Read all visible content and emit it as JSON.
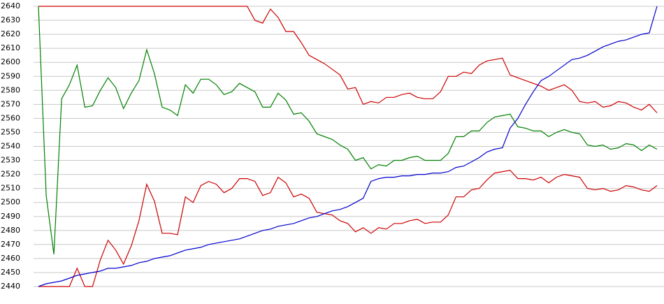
{
  "chart_data": {
    "type": "line",
    "categories": [
      null,
      null,
      null,
      null,
      null,
      null,
      null,
      null,
      null,
      null,
      null,
      null,
      null,
      null,
      null,
      null,
      null,
      null,
      null,
      null,
      null,
      null,
      null,
      null,
      null,
      null,
      null,
      null,
      null,
      null,
      null,
      null,
      null,
      null,
      null,
      null,
      null,
      null,
      null,
      null,
      null,
      null,
      null,
      null,
      null,
      null,
      null,
      null,
      null,
      null,
      null,
      null,
      null,
      null,
      null,
      null,
      null,
      null,
      null,
      null,
      null,
      null,
      null,
      null,
      null,
      null,
      null,
      null,
      null,
      null,
      null,
      null,
      null,
      null,
      null,
      null,
      null,
      null,
      null,
      null,
      null
    ],
    "series": [
      {
        "color": "#cc0000",
        "values": [
          2640,
          2640,
          2640,
          2640,
          2640,
          2640,
          2640,
          2640,
          2640,
          2640,
          2640,
          2640,
          2640,
          2640,
          2640,
          2640,
          2640,
          2640,
          2640,
          2640,
          2640,
          2640,
          2640,
          2640,
          2640,
          2640,
          2640,
          2640,
          2630,
          2628,
          2638,
          2632,
          2622,
          2622,
          2614,
          2605,
          2602,
          2599,
          2595,
          2591,
          2581,
          2582,
          2570,
          2572,
          2571,
          2575,
          2575,
          2577,
          2578,
          2575,
          2574,
          2574,
          2579,
          2590,
          2590,
          2593,
          2592,
          2598,
          2601,
          2602,
          2603,
          2591,
          2589,
          2587,
          2585,
          2583,
          2580,
          2582,
          2584,
          2580,
          2572,
          2571,
          2572,
          2568,
          2569,
          2572,
          2571,
          2568,
          2566,
          2570,
          2564
        ]
      },
      {
        "color": "#008000",
        "values": [
          2640,
          2505,
          2463,
          2574,
          2584,
          2598,
          2568,
          2569,
          2580,
          2589,
          2582,
          2567,
          2578,
          2587,
          2609,
          2592,
          2568,
          2566,
          2562,
          2584,
          2578,
          2588,
          2588,
          2584,
          2577,
          2579,
          2585,
          2582,
          2579,
          2568,
          2568,
          2578,
          2573,
          2563,
          2564,
          2558,
          2549,
          2547,
          2545,
          2541,
          2538,
          2530,
          2532,
          2524,
          2527,
          2526,
          2530,
          2530,
          2532,
          2533,
          2530,
          2530,
          2530,
          2535,
          2547,
          2547,
          2551,
          2551,
          2557,
          2561,
          2562,
          2563,
          2554,
          2553,
          2551,
          2551,
          2547,
          2550,
          2552,
          2550,
          2549,
          2541,
          2540,
          2541,
          2538,
          2539,
          2542,
          2541,
          2537,
          2541,
          2538
        ]
      },
      {
        "color": "#cc0000",
        "values": [
          2440,
          2440,
          2440,
          2440,
          2440,
          2453,
          2440,
          2440,
          2459,
          2473,
          2466,
          2456,
          2469,
          2487,
          2513,
          2501,
          2478,
          2478,
          2477,
          2504,
          2500,
          2512,
          2515,
          2513,
          2507,
          2510,
          2517,
          2517,
          2515,
          2505,
          2507,
          2518,
          2514,
          2504,
          2506,
          2503,
          2493,
          2492,
          2491,
          2487,
          2485,
          2479,
          2482,
          2478,
          2482,
          2481,
          2485,
          2485,
          2487,
          2488,
          2485,
          2486,
          2486,
          2491,
          2504,
          2504,
          2509,
          2510,
          2516,
          2521,
          2522,
          2523,
          2517,
          2517,
          2516,
          2518,
          2514,
          2518,
          2520,
          2519,
          2518,
          2510,
          2509,
          2510,
          2508,
          2509,
          2512,
          2511,
          2509,
          2508,
          2512
        ]
      },
      {
        "color": "#0000cc",
        "values": [
          2440,
          2442,
          2443,
          2444,
          2446,
          2448,
          2449,
          2450,
          2451,
          2453,
          2453,
          2454,
          2455,
          2457,
          2458,
          2460,
          2461,
          2462,
          2464,
          2466,
          2467,
          2468,
          2470,
          2471,
          2472,
          2473,
          2474,
          2476,
          2478,
          2480,
          2481,
          2483,
          2484,
          2485,
          2487,
          2489,
          2490,
          2492,
          2494,
          2495,
          2497,
          2500,
          2503,
          2515,
          2517,
          2518,
          2518,
          2519,
          2519,
          2520,
          2520,
          2521,
          2521,
          2522,
          2525,
          2526,
          2529,
          2532,
          2536,
          2538,
          2539,
          2553,
          2560,
          2570,
          2579,
          2587,
          2590,
          2594,
          2598,
          2602,
          2603,
          2605,
          2608,
          2611,
          2613,
          2615,
          2616,
          2618,
          2620,
          2621,
          2640
        ]
      }
    ],
    "ylim": [
      2440,
      2640
    ],
    "yticks": [
      2440,
      2450,
      2460,
      2470,
      2480,
      2490,
      2500,
      2510,
      2520,
      2530,
      2540,
      2550,
      2560,
      2570,
      2580,
      2590,
      2600,
      2610,
      2620,
      2630,
      2640
    ],
    "grid": true
  }
}
